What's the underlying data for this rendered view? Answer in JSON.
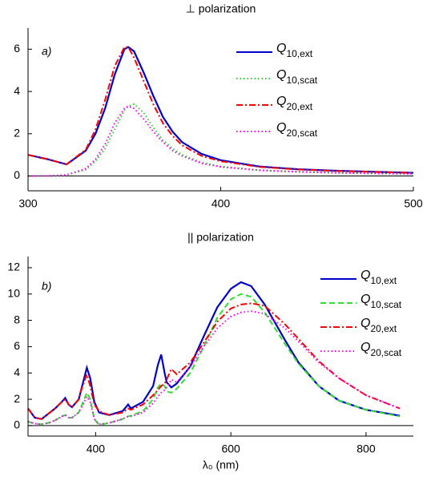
{
  "chart_data": [
    {
      "type": "line",
      "title": "⊥ polarization",
      "annotation": "a)",
      "x": [
        300,
        310,
        320,
        330,
        335,
        340,
        345,
        350,
        352,
        355,
        360,
        365,
        370,
        375,
        380,
        390,
        400,
        420,
        440,
        460,
        480,
        500
      ],
      "series": [
        {
          "name": "Q10,ext",
          "color": "#0000cc",
          "style": "solid",
          "values": [
            1.0,
            0.8,
            0.55,
            1.2,
            2.0,
            3.2,
            4.8,
            6.0,
            6.1,
            5.9,
            4.9,
            3.8,
            2.8,
            2.1,
            1.6,
            1.05,
            0.75,
            0.45,
            0.32,
            0.25,
            0.2,
            0.15
          ]
        },
        {
          "name": "Q10,scat",
          "color": "#33cc33",
          "style": "dotted",
          "values": [
            0,
            0,
            0.05,
            0.3,
            0.7,
            1.3,
            2.2,
            3.1,
            3.3,
            3.4,
            3.0,
            2.3,
            1.7,
            1.3,
            1.0,
            0.65,
            0.45,
            0.28,
            0.2,
            0.15,
            0.12,
            0.1
          ]
        },
        {
          "name": "Q20,ext",
          "color": "#ff0000",
          "style": "dashdot",
          "values": [
            1.0,
            0.8,
            0.55,
            1.25,
            2.2,
            3.6,
            5.2,
            6.1,
            6.1,
            5.6,
            4.5,
            3.4,
            2.5,
            1.9,
            1.45,
            0.95,
            0.7,
            0.43,
            0.31,
            0.24,
            0.19,
            0.15
          ]
        },
        {
          "name": "Q20,scat",
          "color": "#ff00ff",
          "style": "dotted",
          "values": [
            0,
            0,
            0.05,
            0.35,
            0.8,
            1.5,
            2.5,
            3.2,
            3.3,
            3.2,
            2.7,
            2.1,
            1.6,
            1.2,
            0.95,
            0.6,
            0.43,
            0.27,
            0.2,
            0.15,
            0.12,
            0.1
          ]
        }
      ],
      "xlim": [
        300,
        500
      ],
      "xticks": [
        300,
        400,
        500
      ],
      "ylim": [
        -0.7,
        7
      ],
      "yticks": [
        0,
        2,
        4,
        6
      ],
      "reference_line": 0
    },
    {
      "type": "line",
      "title": "|| polarization",
      "annotation": "b)",
      "x_label": "λ₀ (nm)",
      "x": [
        300,
        310,
        320,
        330,
        340,
        350,
        355,
        360,
        365,
        375,
        380,
        387,
        392,
        398,
        405,
        420,
        440,
        448,
        452,
        470,
        485,
        492,
        497,
        502,
        505,
        512,
        520,
        540,
        560,
        580,
        600,
        615,
        630,
        650,
        680,
        700,
        730,
        760,
        800,
        850
      ],
      "series": [
        {
          "name": "Q10,ext",
          "color": "#0000cc",
          "style": "solid",
          "values": [
            1.3,
            0.6,
            0.5,
            0.9,
            1.3,
            1.8,
            2.1,
            1.6,
            1.4,
            2.0,
            3.0,
            4.4,
            3.6,
            1.8,
            1.0,
            0.8,
            1.1,
            1.6,
            1.3,
            1.8,
            3.0,
            4.6,
            5.4,
            4.0,
            3.3,
            2.9,
            3.2,
            4.5,
            6.8,
            9.0,
            10.4,
            10.9,
            10.6,
            9.2,
            6.5,
            4.8,
            3.0,
            1.9,
            1.2,
            0.75
          ]
        },
        {
          "name": "Q10,scat",
          "color": "#33dd33",
          "style": "dashed",
          "values": [
            0.3,
            0.15,
            0.1,
            0.2,
            0.4,
            0.7,
            0.8,
            0.6,
            0.6,
            1.0,
            1.6,
            2.5,
            2.0,
            0.5,
            0.05,
            0.2,
            0.5,
            0.7,
            0.75,
            1.1,
            2.0,
            2.9,
            3.2,
            3.0,
            2.6,
            2.5,
            2.8,
            4.0,
            6.0,
            8.2,
            9.6,
            10.0,
            9.8,
            8.6,
            6.2,
            4.7,
            3.0,
            1.9,
            1.2,
            0.7
          ]
        },
        {
          "name": "Q20,ext",
          "color": "#ff0000",
          "style": "dashdot",
          "values": [
            1.3,
            0.6,
            0.5,
            0.9,
            1.3,
            1.8,
            2.0,
            1.6,
            1.4,
            2.0,
            2.9,
            3.9,
            3.0,
            1.6,
            1.1,
            0.8,
            1.0,
            1.3,
            1.2,
            1.6,
            2.3,
            2.7,
            3.0,
            3.2,
            3.5,
            4.3,
            3.9,
            4.8,
            6.3,
            7.9,
            8.9,
            9.2,
            9.3,
            9.1,
            7.7,
            6.6,
            4.9,
            3.6,
            2.3,
            1.3
          ]
        },
        {
          "name": "Q20,scat",
          "color": "#ff00ff",
          "style": "dotted",
          "values": [
            0.3,
            0.15,
            0.1,
            0.2,
            0.4,
            0.7,
            0.8,
            0.6,
            0.6,
            1.0,
            1.5,
            2.2,
            1.8,
            0.5,
            0.1,
            0.2,
            0.5,
            0.7,
            0.7,
            1.0,
            1.7,
            2.2,
            2.5,
            2.7,
            2.9,
            3.5,
            3.3,
            4.5,
            6.0,
            7.4,
            8.3,
            8.6,
            8.7,
            8.5,
            7.4,
            6.4,
            4.8,
            3.6,
            2.3,
            1.3
          ]
        }
      ],
      "xlim": [
        300,
        870
      ],
      "xticks": [
        400,
        600,
        800
      ],
      "ylim": [
        -0.8,
        12.85
      ],
      "yticks": [
        0,
        2,
        4,
        6,
        8,
        10,
        12
      ],
      "reference_line": 0
    }
  ]
}
